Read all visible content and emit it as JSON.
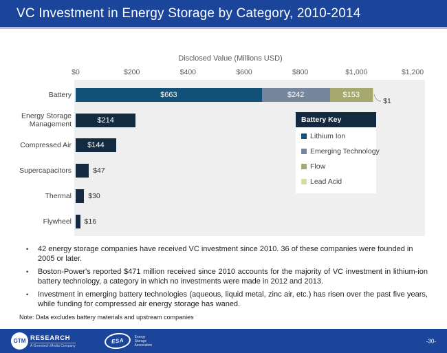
{
  "colors": {
    "header_blue": "#1b449b",
    "navy": "#142a40",
    "plot_background": "#efeff0"
  },
  "slide": {
    "title": "VC Investment in Energy Storage by Category, 2010-2014",
    "page_number": "-30-",
    "bullets": [
      "42 energy storage companies have received VC investment since 2010. 36 of these companies were founded in 2005 or later.",
      "Boston-Power's reported $471 million received since 2010 accounts for the majority of VC investment in lithium-ion battery technology, a category in which no investments were made in 2012 and 2013.",
      "Investment in emerging battery technologies (aqueous, liquid metal, zinc air, etc.) has risen over the past five years, while funding for compressed air energy storage has waned."
    ],
    "note": "Note: Data excludes battery materials and upstream companies"
  },
  "footer": {
    "gtm": {
      "circle": "GTM",
      "name": "RESEARCH",
      "tagline": "A Greentech Media Company"
    },
    "esa": {
      "circle": "ESA",
      "org_lines": [
        "Energy",
        "Storage",
        "Association"
      ]
    }
  },
  "chart_data": {
    "type": "bar",
    "orientation": "horizontal",
    "axis_title": "Disclosed Value (Millions USD)",
    "xlim": [
      0,
      1200
    ],
    "grid": false,
    "x_ticks": [
      {
        "value": 0,
        "label": "$0"
      },
      {
        "value": 200,
        "label": "$200"
      },
      {
        "value": 400,
        "label": "$400"
      },
      {
        "value": 600,
        "label": "$600"
      },
      {
        "value": 800,
        "label": "$800"
      },
      {
        "value": 1000,
        "label": "$1,000"
      },
      {
        "value": 1200,
        "label": "$1,200"
      }
    ],
    "series_colors": {
      "Lithium Ion": "#125178",
      "Emerging Technology": "#76879d",
      "Flow": "#a5a96f",
      "Lead Acid": "#d9dba4",
      "default": "#142a40"
    },
    "rows": [
      {
        "category": "Battery",
        "segments": [
          {
            "series": "Lithium Ion",
            "value": 663,
            "label": "$663"
          },
          {
            "series": "Emerging Technology",
            "value": 242,
            "label": "$242"
          },
          {
            "series": "Flow",
            "value": 153,
            "label": "$153"
          },
          {
            "series": "Lead Acid",
            "value": 1,
            "label": "$1",
            "leader": true
          }
        ]
      },
      {
        "category": "Energy Storage Management",
        "segments": [
          {
            "series": "default",
            "value": 214,
            "label": "$214"
          }
        ]
      },
      {
        "category": "Compressed Air",
        "segments": [
          {
            "series": "default",
            "value": 144,
            "label": "$144"
          }
        ]
      },
      {
        "category": "Supercapacitors",
        "segments": [
          {
            "series": "default",
            "value": 47,
            "label": "$47"
          }
        ]
      },
      {
        "category": "Thermal",
        "segments": [
          {
            "series": "default",
            "value": 30,
            "label": "$30"
          }
        ]
      },
      {
        "category": "Flywheel",
        "segments": [
          {
            "series": "default",
            "value": 16,
            "label": "$16"
          }
        ]
      }
    ],
    "legend": {
      "title": "Battery Key",
      "position": "inside-right",
      "items": [
        "Lithium Ion",
        "Emerging Technology",
        "Flow",
        "Lead Acid"
      ]
    }
  }
}
